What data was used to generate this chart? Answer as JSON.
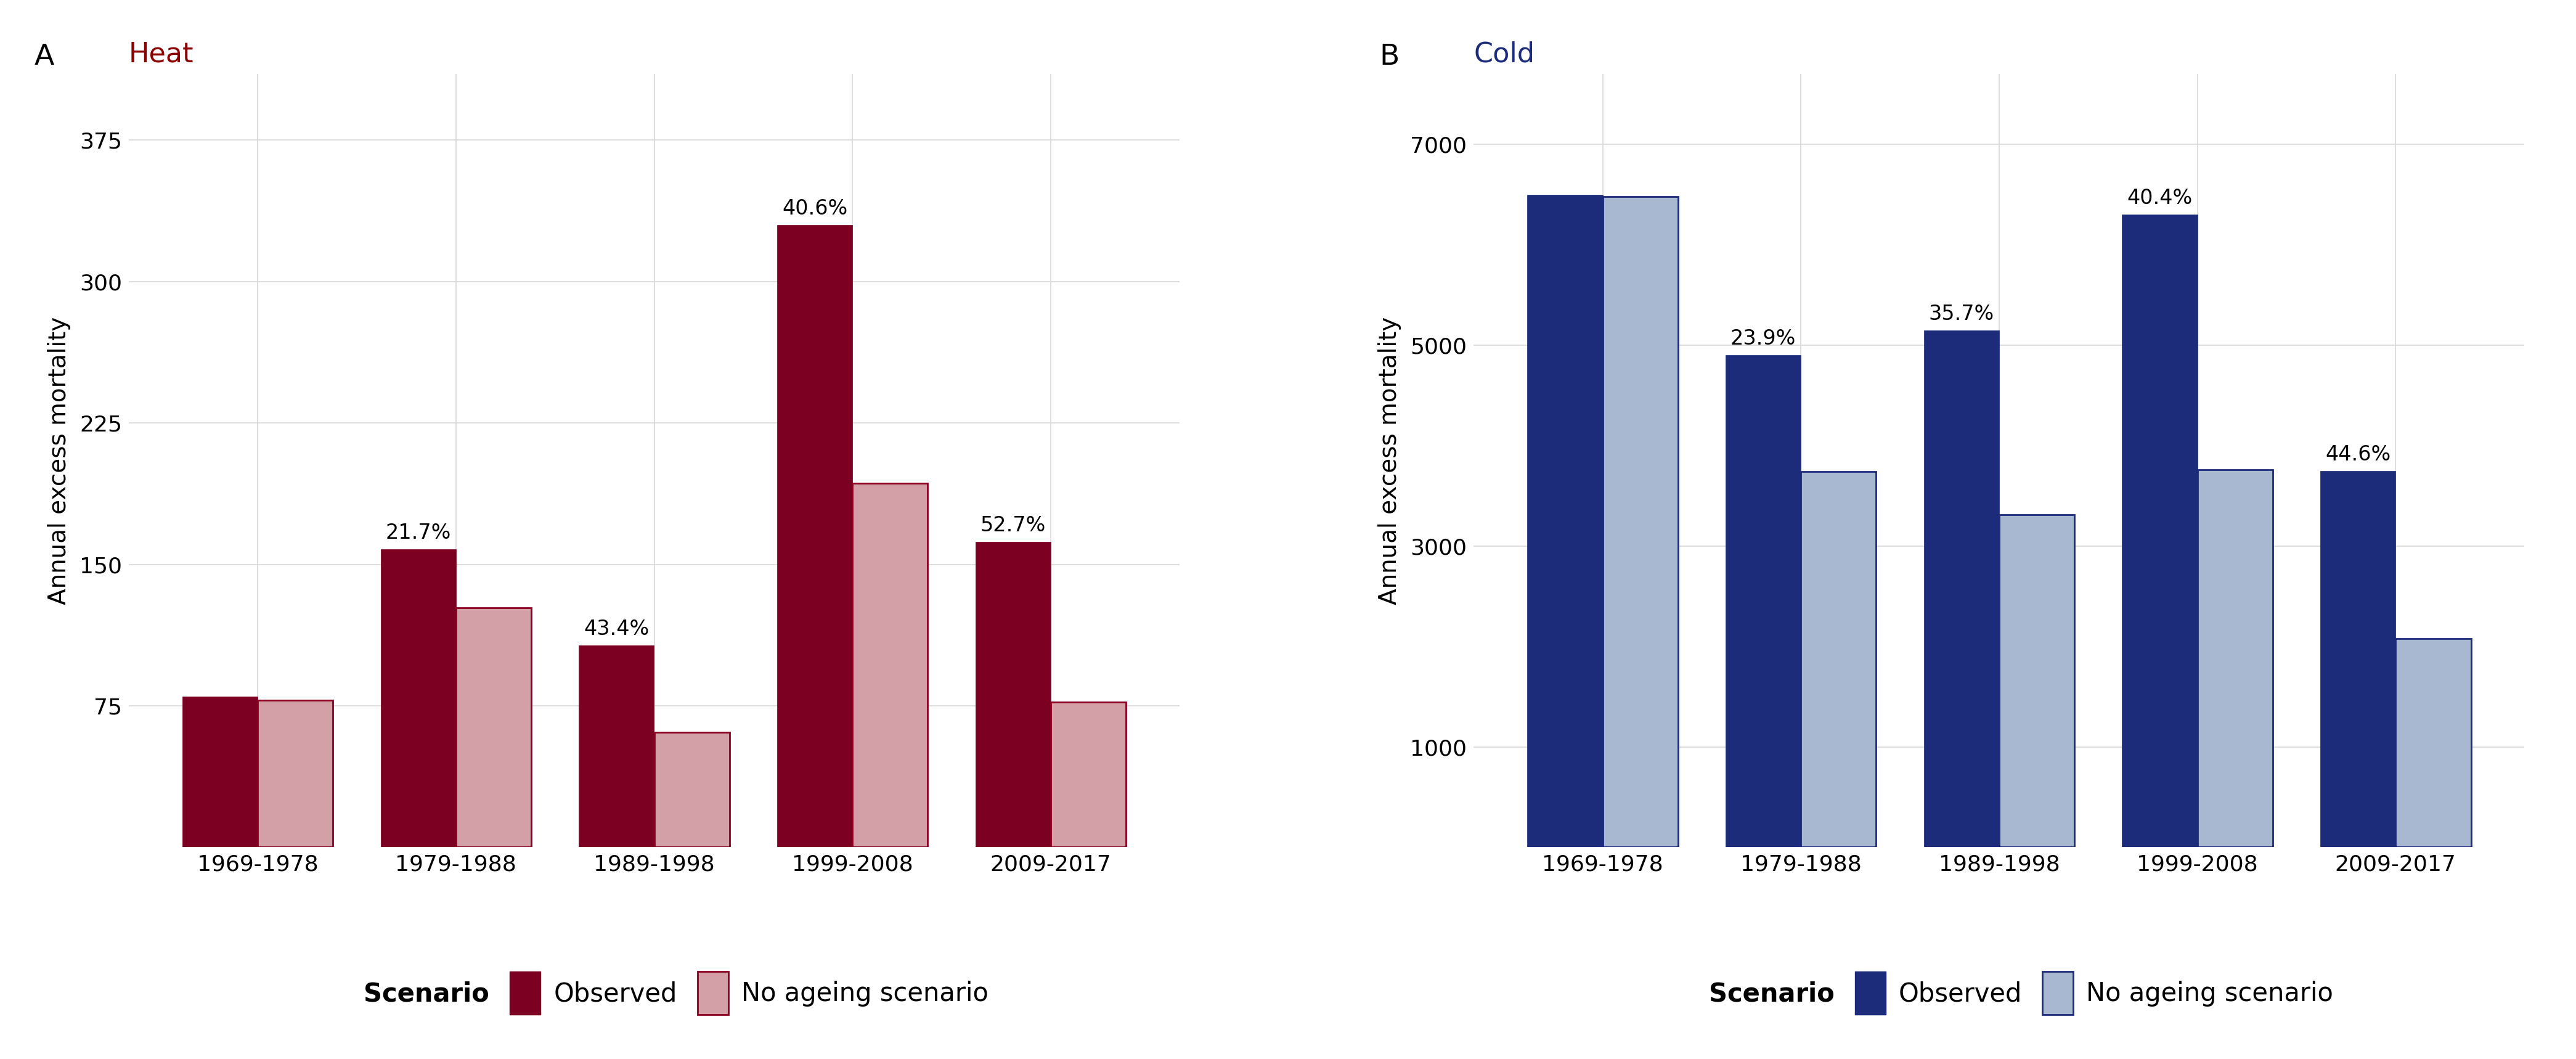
{
  "heat": {
    "title": "Heat",
    "title_color": "#8B0000",
    "panel_label": "A",
    "ylabel": "Annual excess mortality",
    "categories": [
      "1969-1978",
      "1979-1988",
      "1989-1998",
      "1999-2008",
      "2009-2017"
    ],
    "observed": [
      80,
      158,
      107,
      330,
      162
    ],
    "no_ageing": [
      78,
      127,
      61,
      193,
      77
    ],
    "pct_labels": [
      "",
      "21.7%",
      "43.4%",
      "40.6%",
      "52.7%"
    ],
    "observed_color": "#7B0021",
    "no_ageing_color": "#D4A0A8",
    "no_ageing_edgecolor": "#8B0021",
    "ylim": [
      0,
      410
    ],
    "yticks": [
      75,
      150,
      225,
      300,
      375
    ],
    "bar_width": 0.38
  },
  "cold": {
    "title": "Cold",
    "title_color": "#1C2B7A",
    "panel_label": "B",
    "ylabel": "Annual excess mortality",
    "categories": [
      "1969-1978",
      "1979-1988",
      "1989-1998",
      "1999-2008",
      "2009-2017"
    ],
    "observed": [
      6500,
      4900,
      5150,
      6300,
      3750
    ],
    "no_ageing": [
      6480,
      3740,
      3310,
      3760,
      2080
    ],
    "pct_labels": [
      "",
      "23.9%",
      "35.7%",
      "40.4%",
      "44.6%"
    ],
    "observed_color": "#1C2B7A",
    "no_ageing_color": "#A8B8D0",
    "no_ageing_edgecolor": "#1C2B7A",
    "ylim": [
      0,
      7700
    ],
    "yticks": [
      1000,
      3000,
      5000,
      7000
    ],
    "bar_width": 0.38
  },
  "plot_bg_color": "#FFFFFF",
  "fig_bg_color": "#FFFFFF",
  "grid_color": "#D8D8D8",
  "legend_fontsize": 30,
  "label_fontsize": 28,
  "tick_fontsize": 26,
  "title_fontsize": 32,
  "panel_label_fontsize": 34,
  "annot_fontsize": 24
}
